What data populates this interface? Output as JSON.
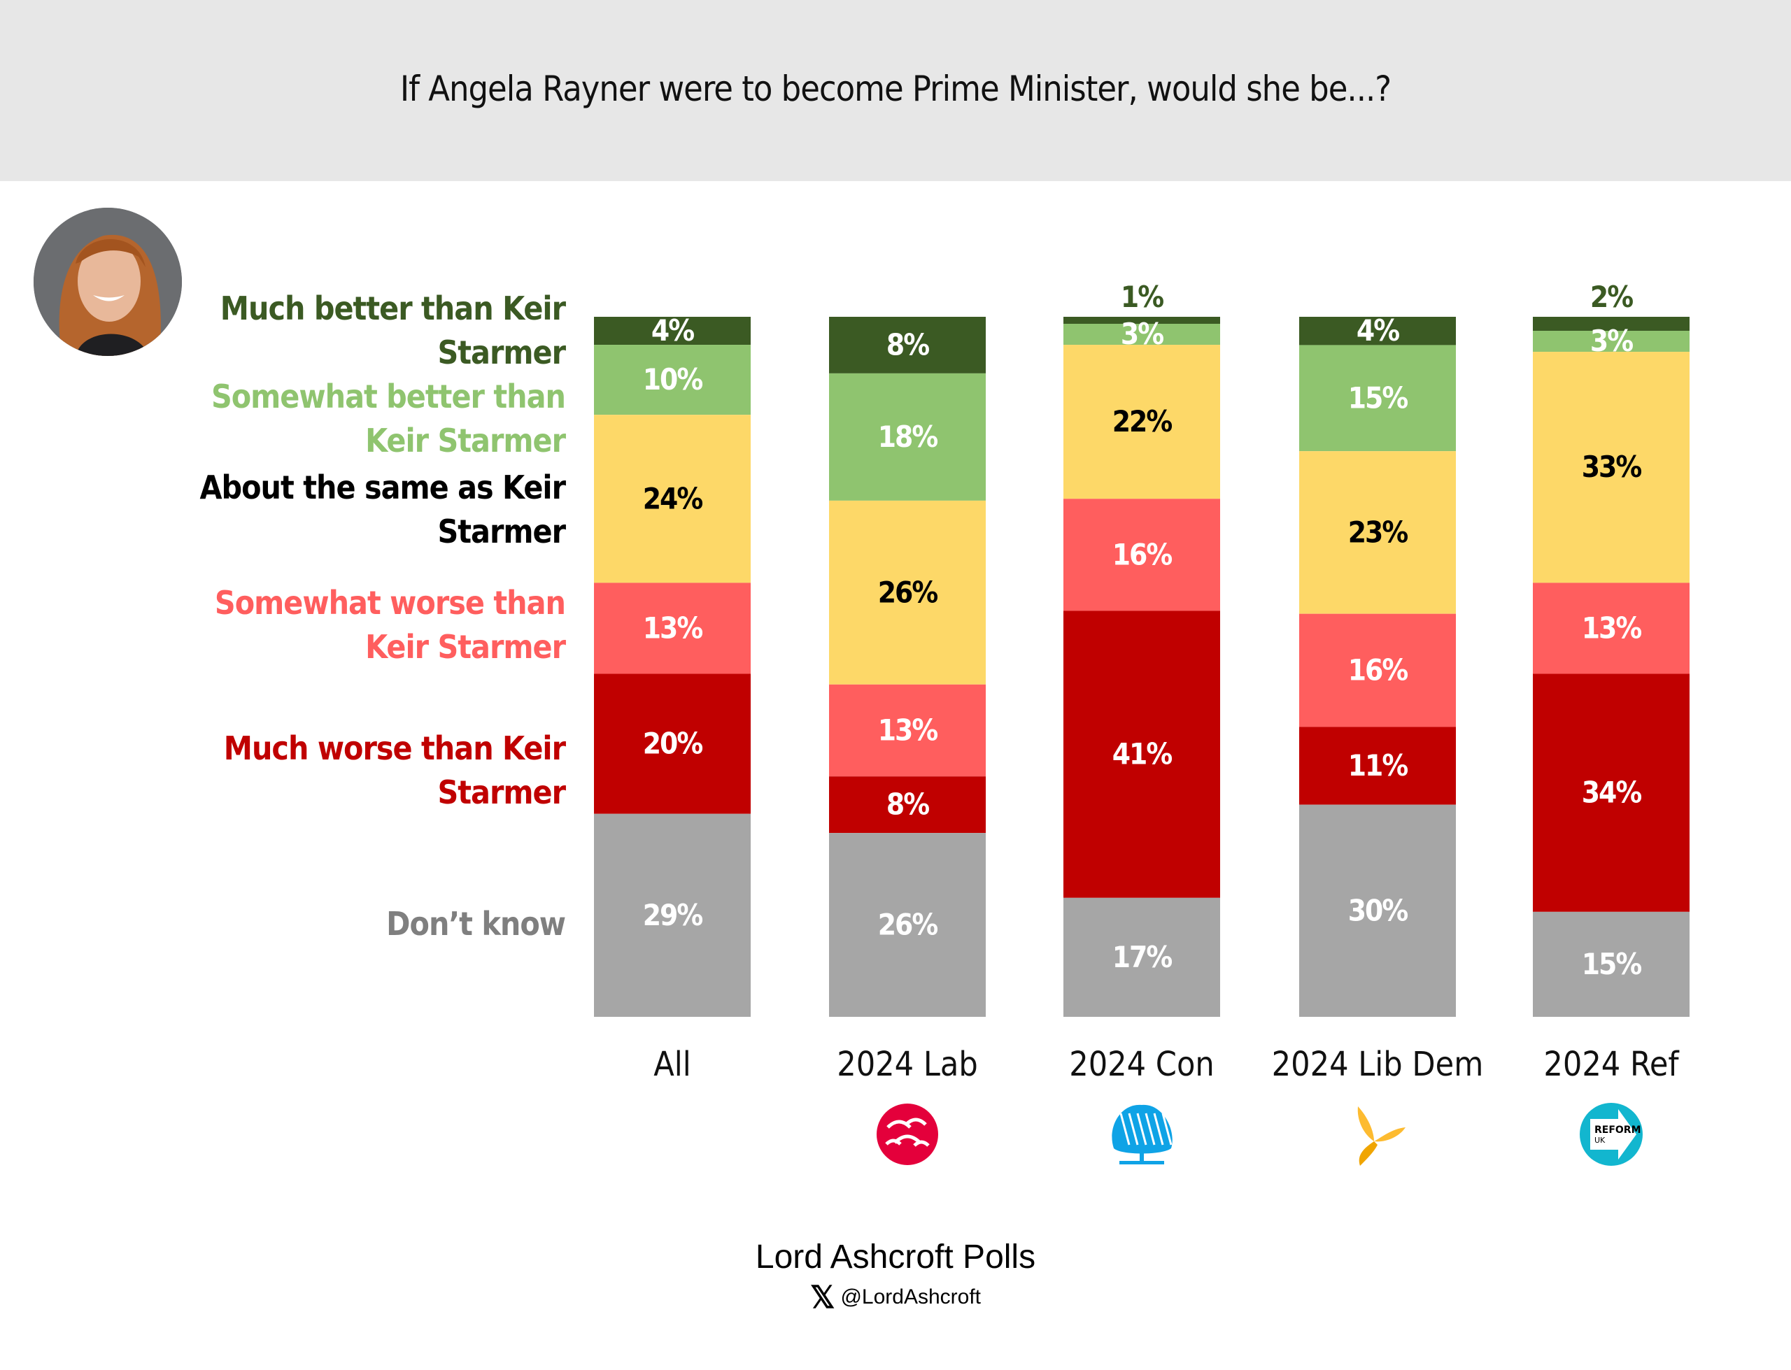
{
  "title": "If Angela Rayner were to become Prime Minister, would she be...?",
  "photo": {
    "subject": "Angela Rayner",
    "icon": "portrait-photo"
  },
  "footer": {
    "brand": "Lord Ashcroft Polls",
    "social_icon": "x-logo-icon",
    "handle": "@LordAshcroft"
  },
  "colors": {
    "title_band": "#e7e7e7",
    "much_better": "#3b5a23",
    "somewhat_better": "#8fc46f",
    "same": "#fdd868",
    "somewhat_worse": "#ff5e5e",
    "much_worse": "#c00000",
    "dont_know": "#a6a6a6"
  },
  "chart_data": {
    "type": "bar",
    "stacked": true,
    "orientation": "vertical",
    "title": "If Angela Rayner were to become Prime Minister, would she be...?",
    "xlabel": "",
    "ylabel": "",
    "ylim": [
      0,
      100
    ],
    "grid": false,
    "legend_position": "left",
    "categories": [
      "All",
      "2024 Lab",
      "2024 Con",
      "2024 Lib Dem",
      "2024 Ref"
    ],
    "category_icons": [
      "",
      "labour-rose-icon",
      "conservative-tree-icon",
      "libdem-bird-icon",
      "reform-uk-arrow-icon"
    ],
    "series": [
      {
        "name": "Much better than Keir Starmer",
        "key": "much_better",
        "color": "#3b5a23",
        "label_color": "#ffffff",
        "values": [
          4,
          8,
          1,
          4,
          2
        ]
      },
      {
        "name": "Somewhat better than Keir Starmer",
        "key": "somewhat_better",
        "color": "#8fc46f",
        "label_color": "#ffffff",
        "values": [
          10,
          18,
          3,
          15,
          3
        ]
      },
      {
        "name": "About the same as Keir Starmer",
        "key": "same",
        "color": "#fdd868",
        "label_color": "#000000",
        "values": [
          24,
          26,
          22,
          23,
          33
        ]
      },
      {
        "name": "Somewhat worse than Keir Starmer",
        "key": "somewhat_worse",
        "color": "#ff5e5e",
        "label_color": "#ffffff",
        "values": [
          13,
          13,
          16,
          16,
          13
        ]
      },
      {
        "name": "Much worse than Keir Starmer",
        "key": "much_worse",
        "color": "#c00000",
        "label_color": "#ffffff",
        "values": [
          20,
          8,
          41,
          11,
          34
        ]
      },
      {
        "name": "Don’t know",
        "key": "dont_know",
        "color": "#a6a6a6",
        "label_color": "#ffffff",
        "values": [
          29,
          26,
          17,
          30,
          15
        ]
      }
    ],
    "legend": [
      {
        "line1": "Much better than Keir",
        "line2": "Starmer",
        "color": "#3b5a23"
      },
      {
        "line1": "Somewhat better than",
        "line2": "Keir Starmer",
        "color": "#8fc46f"
      },
      {
        "line1": "About the same as Keir",
        "line2": "Starmer",
        "color": "#000000"
      },
      {
        "line1": "Somewhat worse than",
        "line2": "Keir Starmer",
        "color": "#ff5e5e"
      },
      {
        "line1": "Much worse than Keir",
        "line2": "Starmer",
        "color": "#c00000"
      },
      {
        "line1": "Don’t know",
        "line2": "",
        "color": "#7f7f7f"
      }
    ],
    "value_suffix": "%"
  }
}
